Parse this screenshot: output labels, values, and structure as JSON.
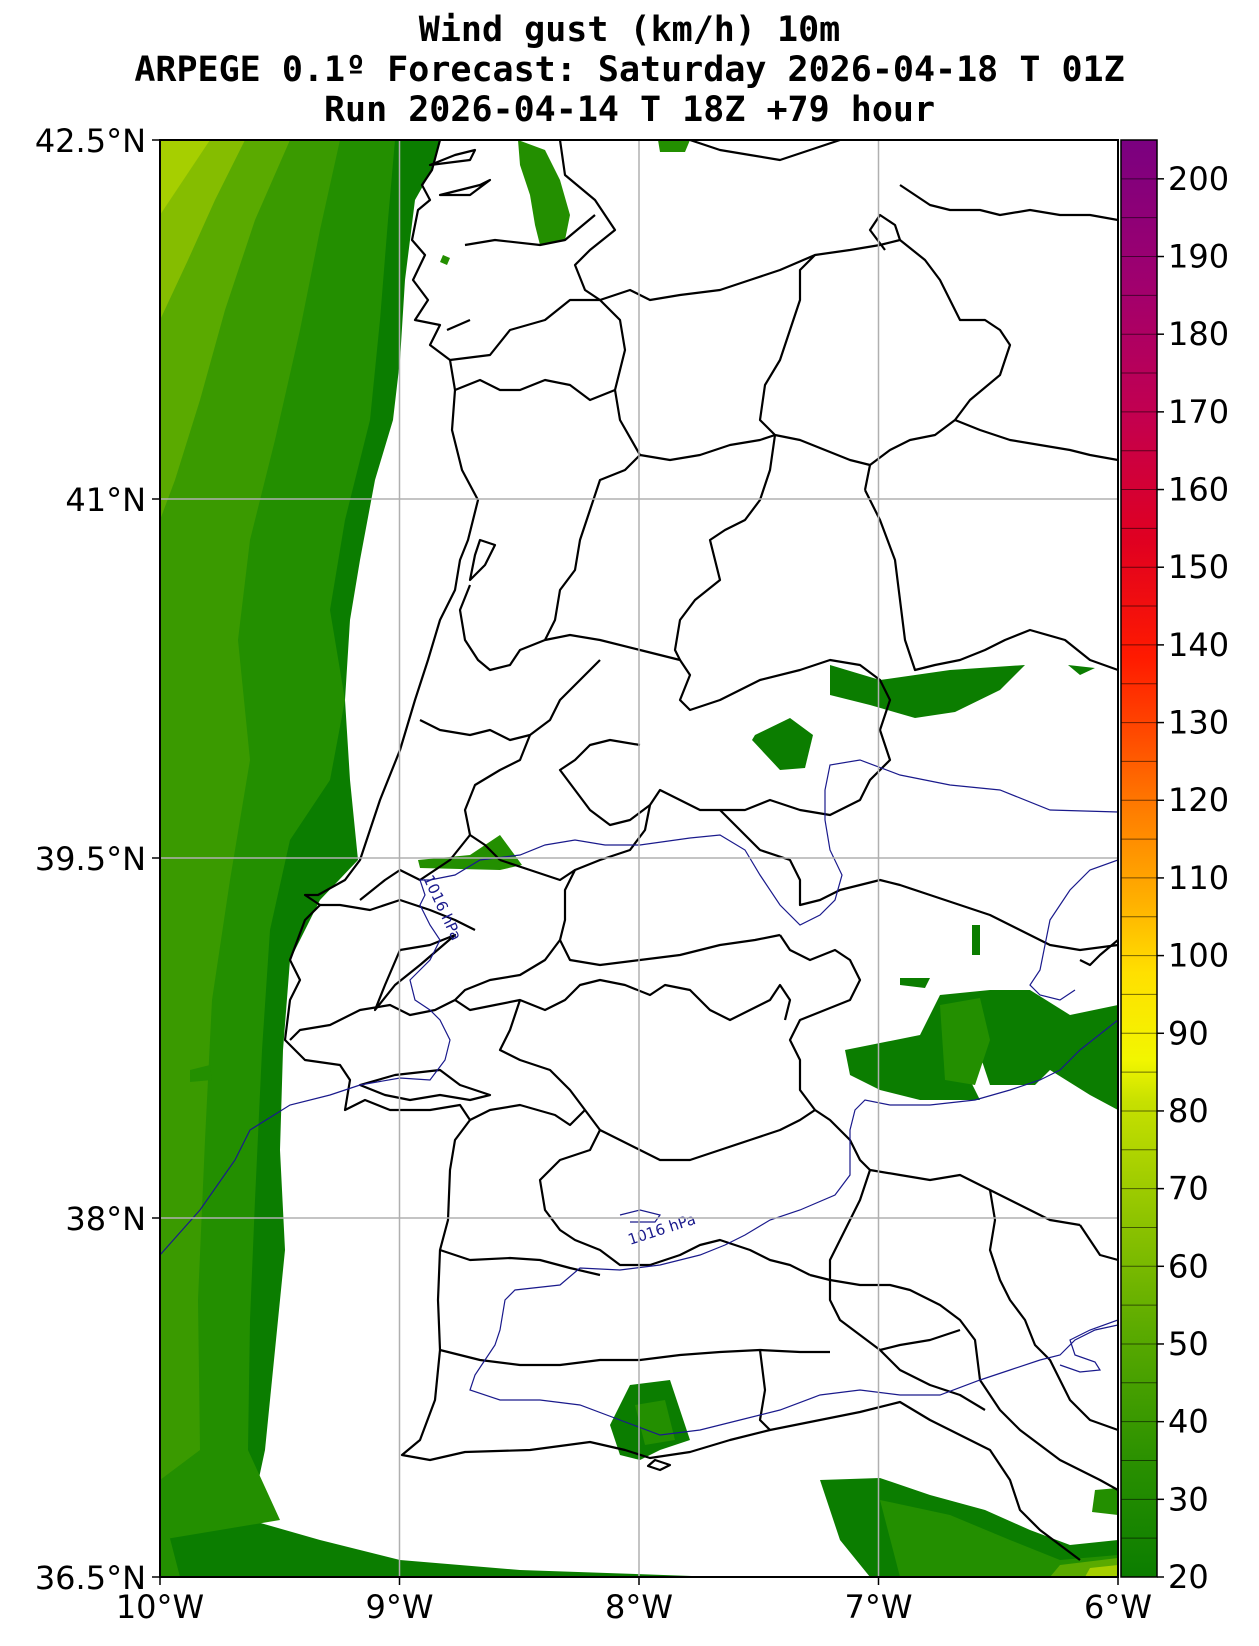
{
  "title": {
    "line1": "Wind gust (km/h) 10m",
    "line2": "ARPEGE 0.1º Forecast: Saturday 2026-04-18 T 01Z",
    "line3": "Run 2026-04-14 T 18Z +79 hour"
  },
  "axes": {
    "lat_ticks": [
      "42.5°N",
      "41°N",
      "39.5°N",
      "38°N",
      "36.5°N"
    ],
    "lon_ticks": [
      "10°W",
      "9°W",
      "8°W",
      "7°W",
      "6°W"
    ]
  },
  "colorbar": {
    "labels": [
      "200",
      "190",
      "180",
      "170",
      "160",
      "150",
      "140",
      "130",
      "120",
      "110",
      "100",
      "90",
      "80",
      "70",
      "60",
      "50",
      "40",
      "30",
      "20"
    ]
  },
  "isobars": {
    "label_a": "1016 hPa",
    "label_b": "1016 hPa"
  },
  "colors": {
    "green_dark": "#0b7d00",
    "green_mid": "#238f00",
    "green_light": "#4ea300",
    "green_lighter": "#6fb300",
    "yellow_green": "#a6cf00",
    "isobar": "#1a1a8c",
    "grid": "#b0b0b0"
  }
}
